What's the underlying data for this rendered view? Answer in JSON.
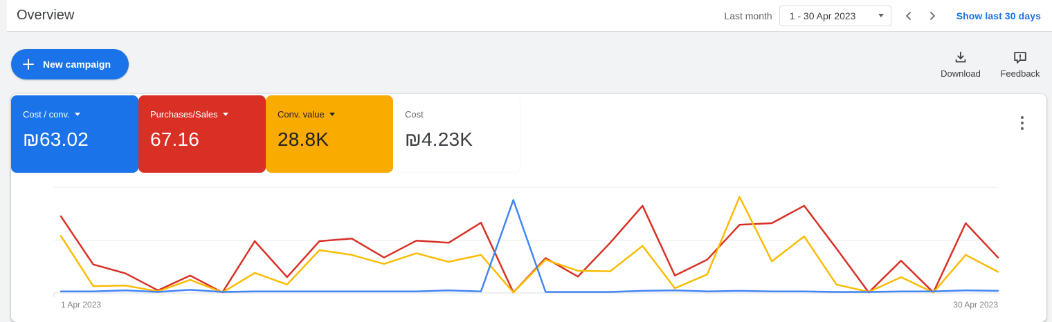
{
  "header": {
    "title": "Overview",
    "date_range_label": "Last month",
    "date_range_value": "1 - 30 Apr 2023",
    "show_last_30_days_label": "Show last 30 days"
  },
  "toolbar": {
    "new_campaign_label": "New campaign",
    "download_label": "Download",
    "feedback_label": "Feedback"
  },
  "colors": {
    "accent_blue": "#1a73e8",
    "card_red": "#d93025",
    "card_yellow": "#f9ab00",
    "line_blue": "#4285f4",
    "line_red": "#d93025",
    "line_yellow": "#fbbc04"
  },
  "scorecards": [
    {
      "label": "Cost / conv.",
      "value": "₪63.02",
      "color": "#1a73e8",
      "text_color": "#ffffff",
      "has_dropdown": true
    },
    {
      "label": "Purchases/Sales",
      "value": "67.16",
      "color": "#d93025",
      "text_color": "#ffffff",
      "has_dropdown": true
    },
    {
      "label": "Conv. value",
      "value": "28.8K",
      "color": "#f9ab00",
      "text_color": "#202124",
      "has_dropdown": true
    },
    {
      "label": "Cost",
      "value": "₪4.23K",
      "color": "#ffffff",
      "text_color": "#3c4043",
      "has_dropdown": false
    }
  ],
  "chart_data": {
    "type": "line",
    "title": "Overview time series, 1–30 Apr 2023 (daily)",
    "xlabel": "",
    "ylabel": "",
    "x_label_start": "1 Apr 2023",
    "x_label_end": "30 Apr 2023",
    "x": [
      1,
      2,
      3,
      4,
      5,
      6,
      7,
      8,
      9,
      10,
      11,
      12,
      13,
      14,
      15,
      16,
      17,
      18,
      19,
      20,
      21,
      22,
      23,
      24,
      25,
      26,
      27,
      28,
      29,
      30
    ],
    "ylim": [
      0,
      2
    ],
    "y_units": "relative gridline units (y-axis is unlabeled in the UI; 1.0 = one gridline)",
    "grid": true,
    "legend_position": "none (colors match scorecards)",
    "series": [
      {
        "name": "Purchases/Sales",
        "color": "#d93025",
        "values": [
          1.45,
          0.54,
          0.37,
          0.05,
          0.33,
          0.01,
          0.98,
          0.3,
          0.98,
          1.03,
          0.67,
          0.99,
          0.95,
          1.33,
          0.01,
          0.66,
          0.31,
          0.95,
          1.65,
          0.33,
          0.63,
          1.29,
          1.32,
          1.65,
          0.84,
          0.01,
          0.61,
          0.01,
          1.32,
          0.67
        ]
      },
      {
        "name": "Conv. value",
        "color": "#fbbc04",
        "values": [
          1.08,
          0.13,
          0.14,
          0.03,
          0.25,
          0.01,
          0.38,
          0.16,
          0.81,
          0.72,
          0.55,
          0.75,
          0.59,
          0.72,
          0.01,
          0.63,
          0.42,
          0.41,
          0.89,
          0.09,
          0.35,
          1.82,
          0.6,
          1.07,
          0.16,
          0.02,
          0.3,
          0.01,
          0.72,
          0.4
        ]
      },
      {
        "name": "Cost / conv.",
        "color": "#4285f4",
        "values": [
          0.03,
          0.03,
          0.05,
          0.02,
          0.06,
          0.02,
          0.03,
          0.03,
          0.03,
          0.03,
          0.03,
          0.03,
          0.05,
          0.03,
          1.76,
          0.02,
          0.02,
          0.02,
          0.04,
          0.05,
          0.03,
          0.04,
          0.03,
          0.03,
          0.02,
          0.02,
          0.03,
          0.03,
          0.05,
          0.04
        ]
      }
    ]
  }
}
